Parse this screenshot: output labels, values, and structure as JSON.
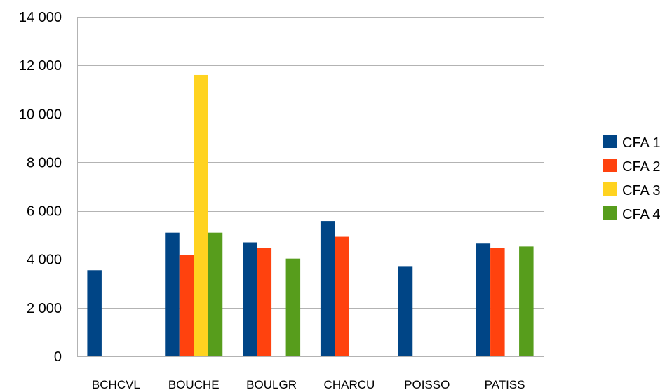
{
  "chart_data": {
    "type": "bar",
    "title": "",
    "xlabel": "",
    "ylabel": "",
    "categories": [
      "BCHCVL",
      "BOUCHE",
      "BOULGR",
      "CHARCU",
      "POISSO",
      "PATISS"
    ],
    "series": [
      {
        "name": "CFA 1",
        "color": "#004586",
        "values": [
          3550,
          5100,
          4700,
          5580,
          3720,
          4650
        ]
      },
      {
        "name": "CFA 2",
        "color": "#ff420e",
        "values": [
          null,
          4180,
          4470,
          4930,
          null,
          4470
        ]
      },
      {
        "name": "CFA 3",
        "color": "#ffd320",
        "values": [
          null,
          11600,
          null,
          null,
          null,
          null
        ]
      },
      {
        "name": "CFA 4",
        "color": "#579d1c",
        "values": [
          null,
          5100,
          4030,
          null,
          null,
          4530
        ]
      }
    ],
    "ylim": [
      0,
      14000
    ],
    "yticks": [
      0,
      2000,
      4000,
      6000,
      8000,
      10000,
      12000,
      14000
    ],
    "ytick_labels": [
      "0",
      "2 000",
      "4 000",
      "6 000",
      "8 000",
      "10 000",
      "12 000",
      "14 000"
    ],
    "grid": true,
    "legend_position": "right",
    "colors": {
      "grid": "#b3b3b3",
      "frame": "#b3b3b3"
    }
  }
}
